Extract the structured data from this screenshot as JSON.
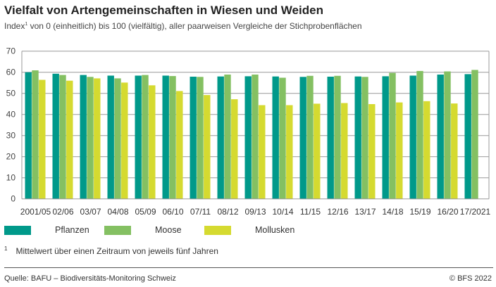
{
  "title": "Vielfalt von Artengemeinschaften in Wiesen und Weiden",
  "subtitle_prefix": "Index",
  "subtitle_sup": "1",
  "subtitle_rest": " von 0 (einheitlich) bis 100 (vielfältig), aller paarweisen Vergleiche der Stichprobenflächen",
  "footnote_mark": "1",
  "footnote": "Mittelwert über einen Zeitraum von jeweils fünf Jahren",
  "source": "Quelle: BAFU – Biodiversitäts-Monitoring Schweiz",
  "copyright": "© BFS 2022",
  "chart_data": {
    "type": "bar",
    "title": "Vielfalt von Artengemeinschaften in Wiesen und Weiden",
    "ylim": [
      0,
      70
    ],
    "yticks": [
      0,
      10,
      20,
      30,
      40,
      50,
      60,
      70
    ],
    "grid": true,
    "legend_position": "bottom",
    "categories": [
      "2001/05",
      "02/06",
      "03/07",
      "04/08",
      "05/09",
      "06/10",
      "07/11",
      "08/12",
      "09/13",
      "10/14",
      "11/15",
      "12/16",
      "13/17",
      "14/18",
      "15/19",
      "16/20",
      "17/2021"
    ],
    "series": [
      {
        "name": "Pflanzen",
        "color": "#00998a",
        "values": [
          60.0,
          59.3,
          58.7,
          58.4,
          58.4,
          58.4,
          57.9,
          58.0,
          58.1,
          58.0,
          57.8,
          57.9,
          58.0,
          58.1,
          58.4,
          58.9,
          59.1
        ]
      },
      {
        "name": "Moose",
        "color": "#84c062",
        "values": [
          60.9,
          58.7,
          57.8,
          57.1,
          58.7,
          58.2,
          57.8,
          58.9,
          58.9,
          57.4,
          58.3,
          58.3,
          57.8,
          59.7,
          60.6,
          60.4,
          61.1
        ]
      },
      {
        "name": "Mollusken",
        "color": "#d5da30",
        "values": [
          56.4,
          56.0,
          57.1,
          55.1,
          53.8,
          51.1,
          49.2,
          47.2,
          44.4,
          44.4,
          45.1,
          45.4,
          44.9,
          45.7,
          46.3,
          45.2,
          null
        ]
      }
    ]
  }
}
